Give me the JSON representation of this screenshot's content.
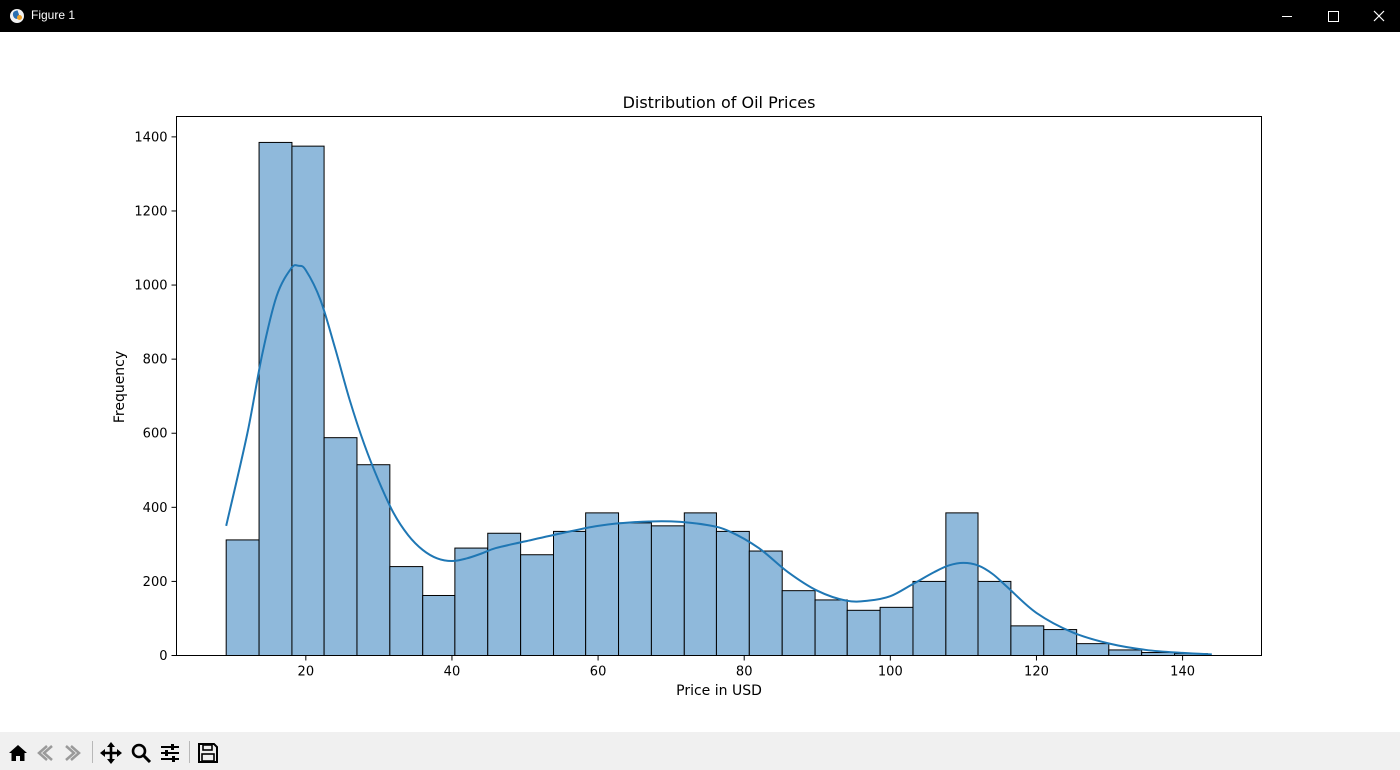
{
  "window": {
    "title": "Figure 1",
    "controls": [
      "minimize",
      "maximize",
      "close"
    ]
  },
  "toolbar": {
    "buttons": [
      {
        "icon": "home-icon",
        "action": "home"
      },
      {
        "icon": "back-icon",
        "action": "back"
      },
      {
        "icon": "forward-icon",
        "action": "forward"
      },
      {
        "icon": "pan-icon",
        "action": "pan"
      },
      {
        "icon": "zoom-icon",
        "action": "zoom"
      },
      {
        "icon": "configure-subplots-icon",
        "action": "configure subplots"
      },
      {
        "icon": "save-icon",
        "action": "save"
      }
    ]
  },
  "chart_data": {
    "type": "bar",
    "title": "Distribution of Oil Prices",
    "xlabel": "Price in USD",
    "ylabel": "Frequency",
    "xlim": [
      2.3,
      150.8
    ],
    "ylim": [
      0,
      1455
    ],
    "xticks": [
      20,
      40,
      60,
      80,
      100,
      120,
      140
    ],
    "yticks": [
      0,
      200,
      400,
      600,
      800,
      1000,
      1200,
      1400
    ],
    "grid": false,
    "bin_edges": [
      9.1,
      13.6,
      18.1,
      22.5,
      27.0,
      31.5,
      36.0,
      40.4,
      44.9,
      49.4,
      53.9,
      58.3,
      62.8,
      67.3,
      71.8,
      76.2,
      80.7,
      85.2,
      89.7,
      94.1,
      98.6,
      103.1,
      107.6,
      112.0,
      116.5,
      121.0,
      125.5,
      129.9,
      134.4,
      138.9,
      143.4
    ],
    "counts": [
      312,
      1385,
      1375,
      588,
      515,
      240,
      162,
      290,
      330,
      272,
      335,
      385,
      358,
      350,
      385,
      335,
      282,
      175,
      150,
      122,
      130,
      200,
      385,
      200,
      80,
      70,
      32,
      15,
      8,
      5
    ],
    "bar_color": "#8fb9db",
    "bar_edge_color": "#000000",
    "kde": {
      "color": "#1f77b4",
      "x": [
        9.1,
        12,
        14,
        16,
        18,
        19,
        20,
        22,
        24,
        26,
        28,
        30,
        32,
        34,
        36,
        38,
        40,
        42,
        44,
        46,
        50,
        55,
        60,
        65,
        70,
        75,
        78,
        82,
        86,
        90,
        94,
        97,
        100,
        103,
        106,
        108,
        110,
        112,
        114,
        116,
        120,
        125,
        130,
        135,
        140,
        144
      ],
      "y": [
        350,
        600,
        810,
        970,
        1045,
        1052,
        1040,
        960,
        830,
        690,
        570,
        470,
        385,
        325,
        285,
        262,
        255,
        262,
        275,
        290,
        308,
        330,
        350,
        360,
        362,
        352,
        335,
        290,
        225,
        175,
        148,
        148,
        160,
        192,
        225,
        243,
        250,
        243,
        220,
        185,
        115,
        62,
        32,
        15,
        7,
        3
      ]
    }
  }
}
